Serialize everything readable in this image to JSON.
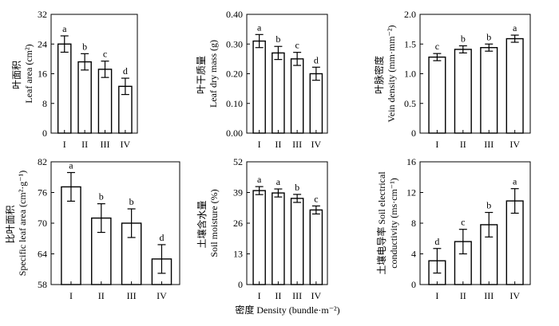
{
  "figure": {
    "x_axis_label": "密度 Density (bundle·m⁻²)"
  },
  "chart_data": [
    {
      "type": "bar",
      "ylabel_cn": "叶面积",
      "ylabel_en": "Leaf area (cm²)",
      "categories": [
        "I",
        "II",
        "III",
        "IV"
      ],
      "values": [
        24.0,
        19.2,
        17.2,
        12.6
      ],
      "errors": [
        2.2,
        2.2,
        2.2,
        2.2
      ],
      "letters": [
        "a",
        "b",
        "c",
        "d"
      ],
      "ylim": [
        0,
        32
      ],
      "yticks": [
        "0",
        "8",
        "16",
        "24",
        "32"
      ]
    },
    {
      "type": "bar",
      "ylabel_cn": "叶干质量",
      "ylabel_en": "Leaf dry mass (g)",
      "categories": [
        "I",
        "II",
        "III",
        "IV"
      ],
      "values": [
        0.31,
        0.27,
        0.25,
        0.2
      ],
      "errors": [
        0.022,
        0.022,
        0.022,
        0.022
      ],
      "letters": [
        "a",
        "b",
        "c",
        "d"
      ],
      "ylim": [
        0,
        0.4
      ],
      "yticks": [
        "0.00",
        "0.10",
        "0.20",
        "0.30",
        "0.40"
      ]
    },
    {
      "type": "bar",
      "ylabel_cn": "叶脉密度",
      "ylabel_en": "Vein density (mm·mm⁻²)",
      "categories": [
        "I",
        "II",
        "III",
        "IV"
      ],
      "values": [
        1.28,
        1.41,
        1.44,
        1.59
      ],
      "errors": [
        0.06,
        0.06,
        0.06,
        0.06
      ],
      "letters": [
        "c",
        "b",
        "b",
        "a"
      ],
      "ylim": [
        0,
        2.0
      ],
      "yticks": [
        "0",
        "0.5",
        "1.0",
        "1.5",
        "2.0"
      ]
    },
    {
      "type": "bar",
      "ylabel_cn": "比叶面积",
      "ylabel_en": "Specific leaf area (cm²·g⁻¹)",
      "categories": [
        "I",
        "II",
        "III",
        "IV"
      ],
      "values": [
        77.1,
        71.0,
        70.0,
        63.0
      ],
      "errors": [
        2.8,
        2.8,
        2.8,
        2.8
      ],
      "letters": [
        "a",
        "b",
        "b",
        "d"
      ],
      "ylim": [
        58,
        82
      ],
      "yticks": [
        "58",
        "64",
        "70",
        "76",
        "82"
      ]
    },
    {
      "type": "bar",
      "ylabel_cn": "土壤含水量",
      "ylabel_en": "Soil moisture (%)",
      "categories": [
        "I",
        "II",
        "III",
        "IV"
      ],
      "values": [
        39.8,
        38.8,
        36.5,
        31.6
      ],
      "errors": [
        1.7,
        1.7,
        1.7,
        1.7
      ],
      "letters": [
        "a",
        "a",
        "b",
        "c"
      ],
      "ylim": [
        0,
        52
      ],
      "yticks": [
        "0",
        "13",
        "26",
        "39",
        "52"
      ]
    },
    {
      "type": "bar",
      "ylabel_cn": "土壤电导率",
      "ylabel_en": "Soil electrical",
      "ylabel_en2": "conductivity (ms·cm⁻¹)",
      "categories": [
        "I",
        "II",
        "III",
        "IV"
      ],
      "values": [
        3.1,
        5.6,
        7.8,
        10.9
      ],
      "errors": [
        1.6,
        1.6,
        1.6,
        1.6
      ],
      "letters": [
        "d",
        "c",
        "b",
        "a"
      ],
      "ylim": [
        0,
        16
      ],
      "yticks": [
        "0",
        "4",
        "8",
        "12",
        "16"
      ]
    }
  ]
}
